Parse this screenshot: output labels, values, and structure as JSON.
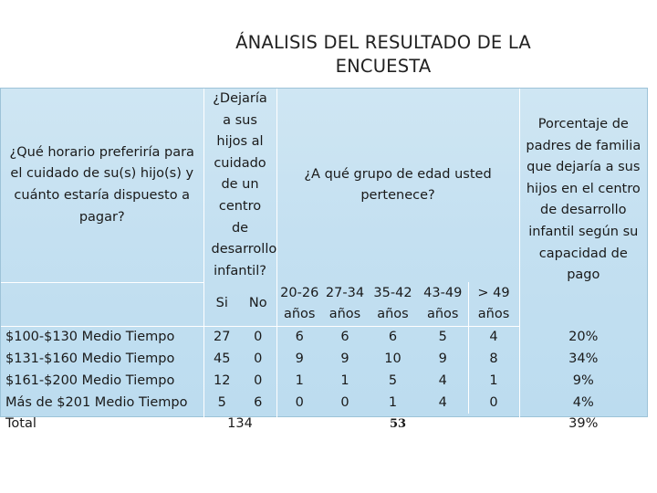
{
  "title": {
    "line1": "ÁNALISIS DEL RESULTADO DE LA",
    "line2": "ENCUESTA"
  },
  "table": {
    "header": {
      "schedule_question": "¿Qué horario preferiría para el cuidado de su(s) hijo(s) y cuánto estaría dispuesto a pagar?",
      "leave_question": "¿Dejaría a sus hijos al cuidado de un centro de desarrollo infantil?",
      "age_question": "¿A qué grupo de edad usted pertenece?",
      "percent_question": "Porcentaje de padres de familia que dejaría a sus hijos en el centro de desarrollo infantil según su capacidad de pago",
      "yes": "Si",
      "no": "No",
      "age_groups": [
        "20-26 años",
        "27-34 años",
        "35-42 años",
        "43-49 años",
        "> 49 años"
      ]
    },
    "rows": [
      {
        "label": "$100-$130 Medio Tiempo",
        "yes": "27",
        "no": "0",
        "ages": [
          "6",
          "6",
          "6",
          "5",
          "4"
        ],
        "percent": "20%"
      },
      {
        "label": "$131-$160 Medio Tiempo",
        "yes": "45",
        "no": "0",
        "ages": [
          "9",
          "9",
          "10",
          "9",
          "8"
        ],
        "percent": "34%"
      },
      {
        "label": "$161-$200 Medio Tiempo",
        "yes": "12",
        "no": "0",
        "ages": [
          "1",
          "1",
          "5",
          "4",
          "1"
        ],
        "percent": "9%"
      },
      {
        "label": "Más de $201 Medio Tiempo",
        "yes": "5",
        "no": "6",
        "ages": [
          "0",
          "0",
          "1",
          "4",
          "0"
        ],
        "percent": "4%"
      }
    ],
    "total": {
      "label": "Total",
      "leave_total": "134",
      "age_total": "53",
      "percent": "39%"
    }
  }
}
